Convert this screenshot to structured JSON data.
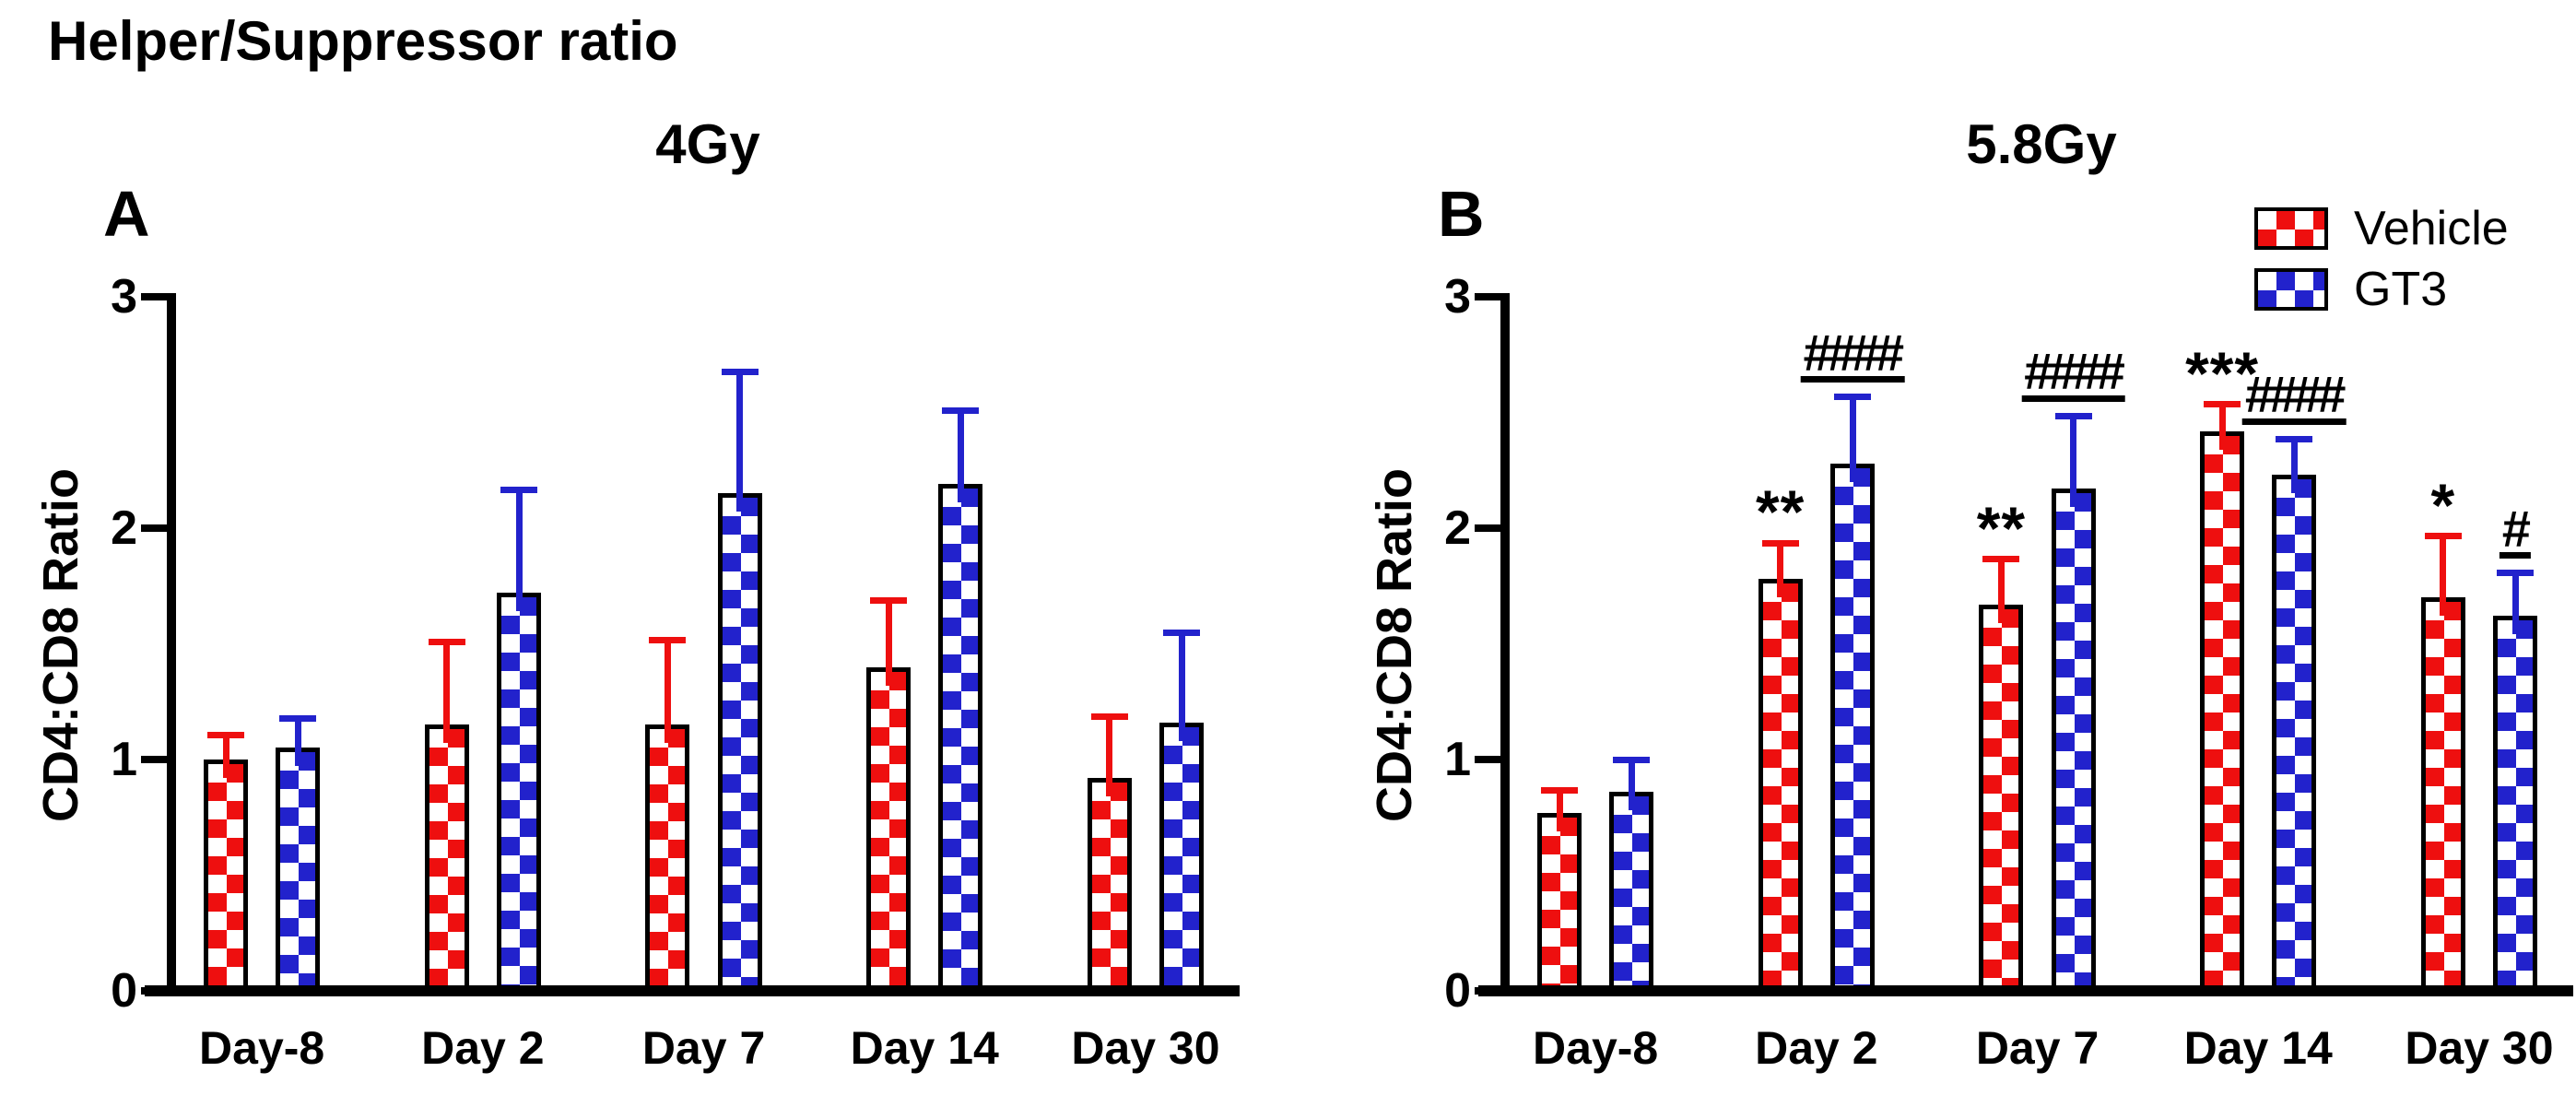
{
  "figure_title": "Helper/Suppressor ratio",
  "colors": {
    "vehicle_red": "#ee0f0f",
    "gt3_blue": "#2222cc",
    "axis_black": "#000000",
    "background": "#ffffff"
  },
  "legend": {
    "position": "top-right-of-panel-B",
    "items": [
      {
        "label": "Vehicle",
        "color": "#ee0f0f",
        "pattern": "checkerboard"
      },
      {
        "label": "GT3",
        "color": "#2222cc",
        "pattern": "checkerboard"
      }
    ]
  },
  "chart_data": [
    {
      "type": "bar",
      "panel_label": "A",
      "title": "4Gy",
      "xlabel": "",
      "ylabel": "CD4:CD8 Ratio",
      "ylim": [
        0,
        3
      ],
      "yticks": [
        0,
        1,
        2,
        3
      ],
      "grid": "off",
      "error_bars": "upper SD, colored per series",
      "categories": [
        "Day-8",
        "Day 2",
        "Day 7",
        "Day 14",
        "Day 30"
      ],
      "series": [
        {
          "name": "Vehicle",
          "color": "#ee0f0f",
          "values": [
            1.0,
            1.15,
            1.15,
            1.4,
            0.92
          ],
          "errors": [
            0.12,
            0.37,
            0.38,
            0.3,
            0.28
          ],
          "annotations": [
            "",
            "",
            "",
            "",
            ""
          ]
        },
        {
          "name": "GT3",
          "color": "#2222cc",
          "values": [
            1.05,
            1.72,
            2.15,
            2.19,
            1.16
          ],
          "errors": [
            0.14,
            0.46,
            0.54,
            0.33,
            0.4
          ],
          "annotations": [
            "",
            "",
            "",
            "",
            ""
          ]
        }
      ]
    },
    {
      "type": "bar",
      "panel_label": "B",
      "title": "5.8Gy",
      "xlabel": "",
      "ylabel": "CD4:CD8 Ratio",
      "ylim": [
        0,
        3
      ],
      "yticks": [
        0,
        1,
        2,
        3
      ],
      "grid": "off",
      "error_bars": "upper SD, colored per series",
      "legend_visible": true,
      "categories": [
        "Day-8",
        "Day 2",
        "Day 7",
        "Day 14",
        "Day 30"
      ],
      "series": [
        {
          "name": "Vehicle",
          "color": "#ee0f0f",
          "values": [
            0.77,
            1.78,
            1.67,
            2.42,
            1.7
          ],
          "errors": [
            0.11,
            0.17,
            0.21,
            0.13,
            0.28
          ],
          "annotations": [
            "",
            "**",
            "**",
            "***",
            "*"
          ]
        },
        {
          "name": "GT3",
          "color": "#2222cc",
          "values": [
            0.86,
            2.28,
            2.17,
            2.23,
            1.62
          ],
          "errors": [
            0.15,
            0.3,
            0.33,
            0.17,
            0.2
          ],
          "annotations": [
            "",
            "####",
            "####",
            "####",
            "#"
          ]
        }
      ]
    }
  ]
}
